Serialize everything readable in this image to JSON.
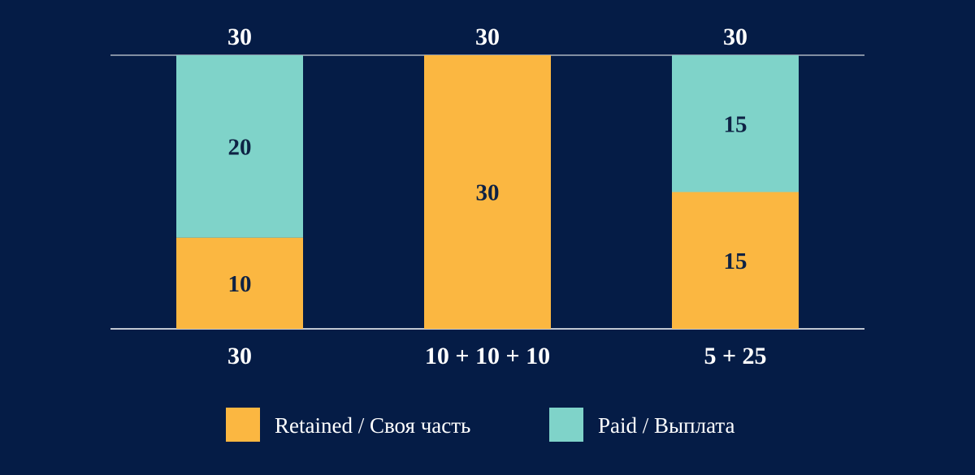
{
  "chart_data": {
    "type": "bar",
    "stacked": true,
    "categories": [
      "30",
      "10 + 10 + 10",
      "5 + 25"
    ],
    "series": [
      {
        "name": "Retained / Своя часть",
        "values": [
          10,
          30,
          15
        ],
        "color": "#fbb741"
      },
      {
        "name": "Paid / Выплата",
        "values": [
          20,
          0,
          15
        ],
        "color": "#7fd3c9"
      }
    ],
    "totals": [
      30,
      30,
      30
    ],
    "ylim": [
      0,
      30
    ],
    "grid": false,
    "legend_position": "bottom"
  },
  "colors": {
    "background": "#051c46",
    "retained": "#fbb741",
    "paid": "#7fd3c9",
    "inner_label": "#0e2244",
    "text": "#ffffff"
  }
}
